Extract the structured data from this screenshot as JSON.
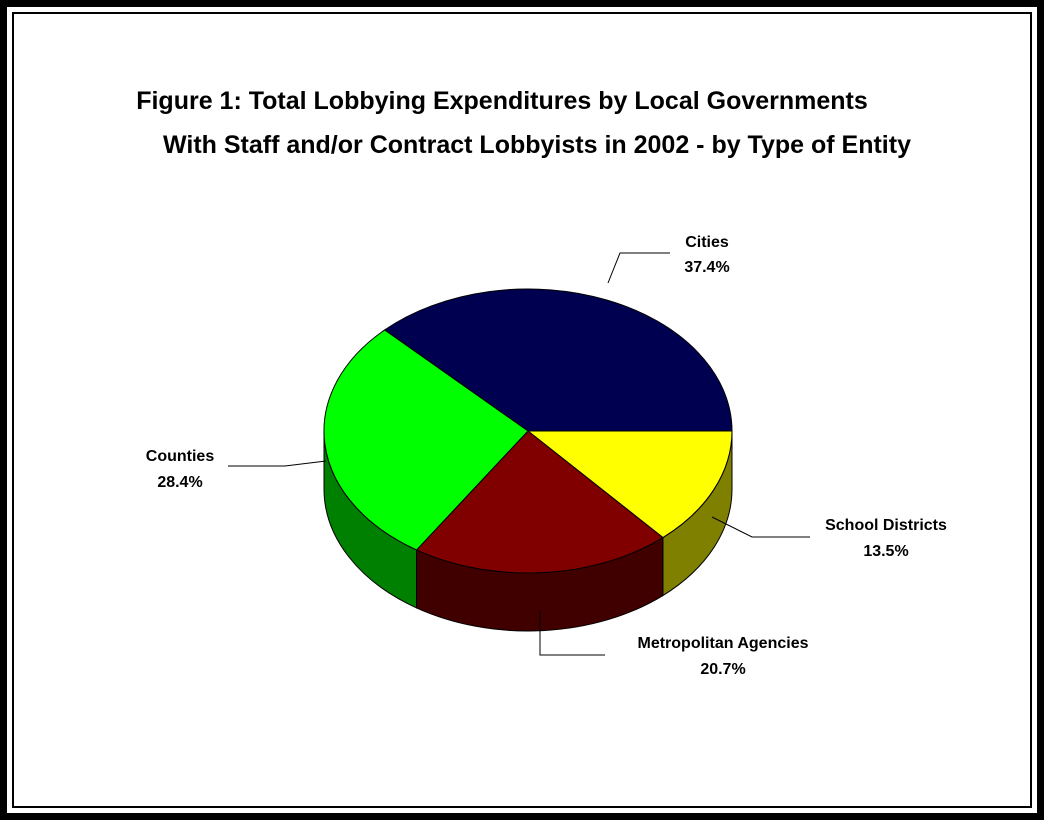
{
  "chart_data": {
    "type": "pie",
    "title_line1": "Figure 1:  Total Lobbying Expenditures by Local Governments",
    "title_line2": "With Staff and/or Contract Lobbyists in 2002 - by Type of Entity",
    "slices": [
      {
        "label": "Cities",
        "value_label": "37.4%",
        "value": 37.4,
        "color": "#000050",
        "side_color": "#00002a"
      },
      {
        "label": "School Districts",
        "value_label": "13.5%",
        "value": 13.5,
        "color": "#ffff00",
        "side_color": "#808000"
      },
      {
        "label": "Metropolitan Agencies",
        "value_label": "20.7%",
        "value": 20.7,
        "color": "#800000",
        "side_color": "#400000"
      },
      {
        "label": "Counties",
        "value_label": "28.4%",
        "value": 28.4,
        "color": "#00ff00",
        "side_color": "#008000"
      }
    ],
    "legend": "none",
    "style": "3d-pie"
  }
}
